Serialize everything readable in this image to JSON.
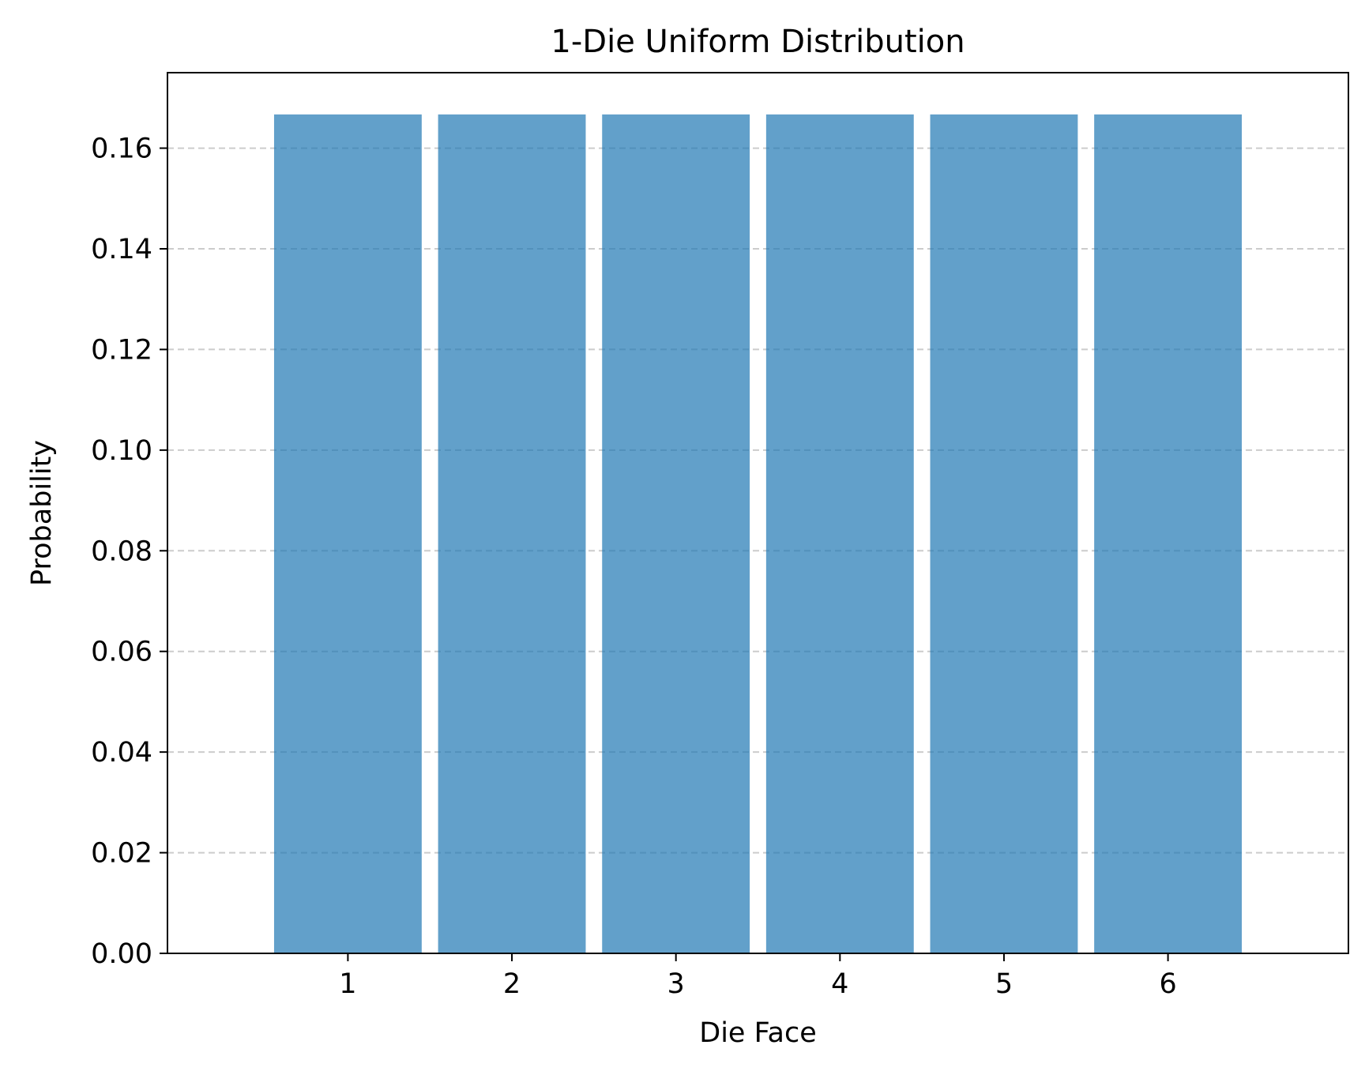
{
  "chart_data": {
    "type": "bar",
    "title": "1-Die Uniform Distribution",
    "xlabel": "Die Face",
    "ylabel": "Probability",
    "categories": [
      "1",
      "2",
      "3",
      "4",
      "5",
      "6"
    ],
    "values": [
      0.1667,
      0.1667,
      0.1667,
      0.1667,
      0.1667,
      0.1667
    ],
    "ylim": [
      0,
      0.175
    ],
    "yticks": [
      0.0,
      0.02,
      0.04,
      0.06,
      0.08,
      0.1,
      0.12,
      0.14,
      0.16
    ],
    "ytick_labels": [
      "0.00",
      "0.02",
      "0.04",
      "0.06",
      "0.08",
      "0.10",
      "0.12",
      "0.14",
      "0.16"
    ],
    "grid": "y-dashed",
    "bar_color": "#1f77b4",
    "bar_opacity": 0.7,
    "grid_color": "#cccccc"
  }
}
